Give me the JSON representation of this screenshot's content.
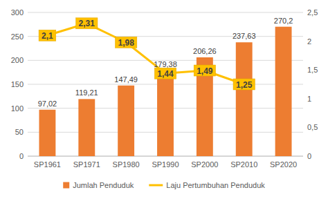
{
  "chart_data": {
    "type": "bar",
    "categories": [
      "SP1961",
      "SP1971",
      "SP1980",
      "SP1990",
      "SP2000",
      "SP2010",
      "SP2020"
    ],
    "series": [
      {
        "name": "Jumlah Penduduk",
        "type": "bar",
        "color": "#ED7D31",
        "values": [
          97.02,
          119.21,
          147.49,
          179.38,
          206.26,
          237.63,
          270.2
        ],
        "value_labels": [
          "97,02",
          "119,21",
          "147,49",
          "179,38",
          "206,26",
          "237,63",
          "270,2"
        ]
      },
      {
        "name": "Laju Pertumbuhan Penduduk",
        "type": "line",
        "axis": "y2",
        "color": "#FFC000",
        "values": [
          2.1,
          2.31,
          1.98,
          1.44,
          1.49,
          1.25,
          null
        ],
        "value_labels": [
          "2,1",
          "2,31",
          "1,98",
          "1,44",
          "1,49",
          "1,25",
          null
        ]
      }
    ],
    "ylim": [
      0,
      300
    ],
    "yticks": [
      0,
      50,
      100,
      150,
      200,
      250,
      300
    ],
    "y2lim": [
      0,
      2.5
    ],
    "y2ticks": [
      0,
      {
        "value": 0.5,
        "label": "0,5"
      },
      1,
      {
        "value": 1.5,
        "label": "1,5"
      },
      2,
      {
        "value": 2.5,
        "label": "2,5"
      }
    ],
    "data_labels": true,
    "grid": true,
    "legend": "bottom"
  }
}
